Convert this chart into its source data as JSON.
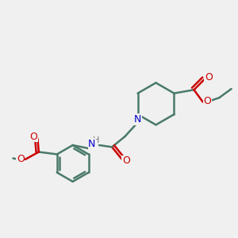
{
  "background_color": "#f0f0f0",
  "bond_color": "#4a7a6a",
  "bond_width": 1.8,
  "atom_colors": {
    "N": "#0000cc",
    "O": "#cc0000",
    "H": "#777777",
    "C": "#4a7a6a"
  },
  "figsize": [
    3.0,
    3.0
  ],
  "dpi": 100,
  "xlim": [
    0,
    10
  ],
  "ylim": [
    0,
    10
  ]
}
